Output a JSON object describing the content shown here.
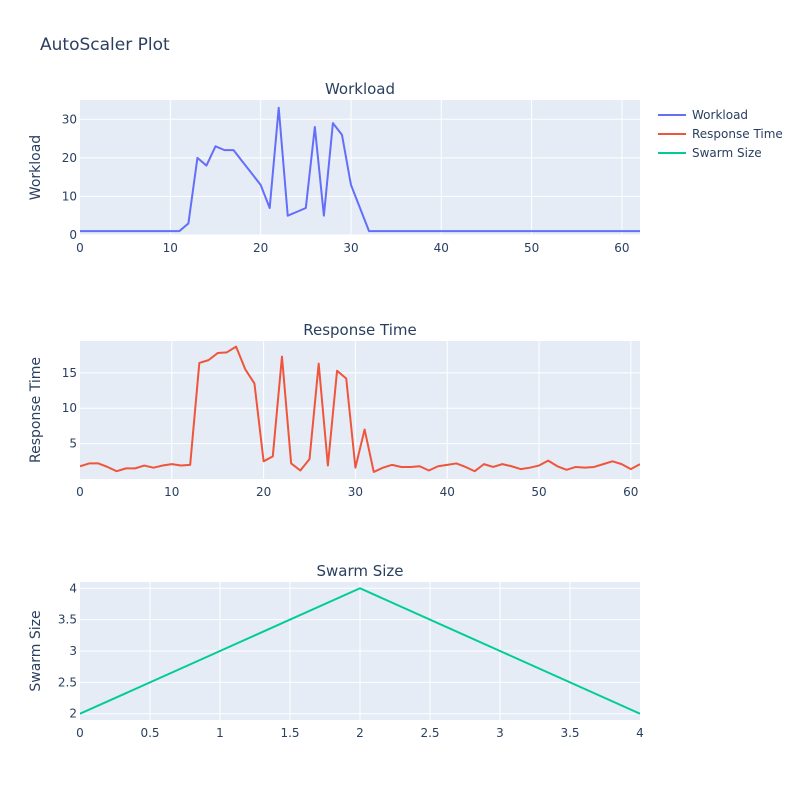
{
  "title": "AutoScaler Plot",
  "colors": {
    "workload": "#636efa",
    "response": "#ef553b",
    "swarm": "#00cc96",
    "plot_bg": "#e5ecf6",
    "grid": "#ffffff",
    "text": "#2a3f5f"
  },
  "legend": {
    "placement": "top-right",
    "items": [
      {
        "label": "Workload",
        "color": "#636efa"
      },
      {
        "label": "Response Time",
        "color": "#ef553b"
      },
      {
        "label": "Swarm Size",
        "color": "#00cc96"
      }
    ]
  },
  "chart_data": [
    {
      "type": "line",
      "title": "Workload",
      "xlabel": "",
      "ylabel": "Workload",
      "xlim": [
        0,
        62
      ],
      "ylim": [
        0,
        35
      ],
      "xticks": [
        0,
        10,
        20,
        30,
        40,
        50,
        60
      ],
      "yticks": [
        0,
        10,
        20,
        30
      ],
      "series": [
        {
          "name": "Workload",
          "color": "#636efa",
          "x": [
            0,
            1,
            2,
            3,
            4,
            5,
            6,
            7,
            8,
            9,
            10,
            11,
            12,
            13,
            14,
            15,
            16,
            17,
            18,
            19,
            20,
            21,
            22,
            23,
            24,
            25,
            26,
            27,
            28,
            29,
            30,
            31,
            32,
            33,
            34,
            35,
            36,
            37,
            38,
            39,
            40,
            41,
            42,
            43,
            44,
            45,
            46,
            47,
            48,
            49,
            50,
            51,
            52,
            53,
            54,
            55,
            56,
            57,
            58,
            59,
            60,
            61,
            62
          ],
          "y": [
            1,
            1,
            1,
            1,
            1,
            1,
            1,
            1,
            1,
            1,
            1,
            1,
            3,
            20,
            18,
            23,
            22,
            22,
            19,
            16,
            13,
            7,
            33,
            5,
            6,
            7,
            28,
            5,
            29,
            26,
            13,
            7,
            1,
            1,
            1,
            1,
            1,
            1,
            1,
            1,
            1,
            1,
            1,
            1,
            1,
            1,
            1,
            1,
            1,
            1,
            1,
            1,
            1,
            1,
            1,
            1,
            1,
            1,
            1,
            1,
            1,
            1,
            1
          ]
        }
      ]
    },
    {
      "type": "line",
      "title": "Response Time",
      "xlabel": "",
      "ylabel": "Response Time",
      "xlim": [
        0,
        61
      ],
      "ylim": [
        0,
        19.5
      ],
      "xticks": [
        0,
        10,
        20,
        30,
        40,
        50,
        60
      ],
      "yticks": [
        5,
        10,
        15
      ],
      "series": [
        {
          "name": "Response Time",
          "color": "#ef553b",
          "x": [
            0,
            1,
            2,
            3,
            4,
            5,
            6,
            7,
            8,
            9,
            10,
            11,
            12,
            13,
            14,
            15,
            16,
            17,
            18,
            19,
            20,
            21,
            22,
            23,
            24,
            25,
            26,
            27,
            28,
            29,
            30,
            31,
            32,
            33,
            34,
            35,
            36,
            37,
            38,
            39,
            40,
            41,
            42,
            43,
            44,
            45,
            46,
            47,
            48,
            49,
            50,
            51,
            52,
            53,
            54,
            55,
            56,
            57,
            58,
            59,
            60,
            61
          ],
          "y": [
            1.8,
            2.2,
            2.2,
            1.7,
            1.1,
            1.5,
            1.5,
            1.9,
            1.6,
            1.9,
            2.1,
            1.9,
            2.0,
            16.4,
            16.8,
            17.8,
            17.9,
            18.7,
            15.5,
            13.5,
            2.5,
            3.2,
            17.3,
            2.2,
            1.2,
            2.8,
            16.3,
            1.9,
            15.3,
            14.2,
            1.6,
            7.0,
            1.0,
            1.6,
            2.0,
            1.7,
            1.7,
            1.8,
            1.2,
            1.8,
            2.0,
            2.2,
            1.7,
            1.1,
            2.1,
            1.7,
            2.1,
            1.8,
            1.4,
            1.6,
            1.9,
            2.6,
            1.8,
            1.3,
            1.7,
            1.6,
            1.7,
            2.1,
            2.5,
            2.1,
            1.4,
            2.1
          ]
        }
      ]
    },
    {
      "type": "line",
      "title": "Swarm Size",
      "xlabel": "",
      "ylabel": "Swarm Size",
      "xlim": [
        0,
        4
      ],
      "ylim": [
        1.9,
        4.1
      ],
      "xticks": [
        0,
        0.5,
        1,
        1.5,
        2,
        2.5,
        3,
        3.5,
        4
      ],
      "yticks": [
        2,
        2.5,
        3,
        3.5,
        4
      ],
      "series": [
        {
          "name": "Swarm Size",
          "color": "#00cc96",
          "x": [
            0,
            1,
            2,
            3,
            4
          ],
          "y": [
            2,
            3,
            4,
            3,
            2
          ]
        }
      ]
    }
  ]
}
